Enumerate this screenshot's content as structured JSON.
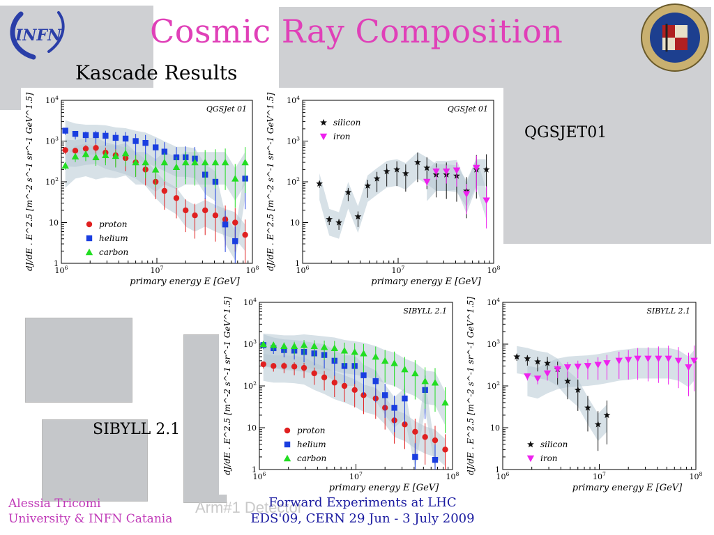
{
  "slide": {
    "title": "Cosmic Ray Composition",
    "subtitle": "Kascade Results",
    "label_qgsjet": "QGSJET01",
    "label_sibyll": "SIBYLL 2.1",
    "logo_text": "INFN",
    "footer_left_1": "Alessia Tricomi",
    "footer_left_2": "University & INFN Catania",
    "footer_center_1": "Forward Experiments at LHC",
    "footer_center_2": "EDS'09, CERN 29 Jun - 3 July 2009",
    "background_text": "Arm#1 Detector"
  },
  "colors": {
    "title": "#e040b8",
    "proton": "#e02020",
    "helium": "#1a3ee0",
    "carbon": "#22dd22",
    "silicon": "#111111",
    "iron": "#ee22ee",
    "band": "#b7c8d4"
  },
  "axes": {
    "xlabel": "primary energy E  [GeV]",
    "ylabel": "dJ/dE . E^2.5  [m^-2 s^-1 sr^-1 GeV^1.5]"
  },
  "chart_data": [
    {
      "type": "scatter",
      "title": "QGSJet 01",
      "xlim": [
        1000000,
        100000000
      ],
      "ylim": [
        1,
        10000
      ],
      "xscale": "log",
      "yscale": "log",
      "xticks": [
        "10^6",
        "10^7",
        "10^8"
      ],
      "yticks": [
        "1",
        "10",
        "10^2",
        "10^3",
        "10^4"
      ],
      "legend_position": "bottom-left",
      "series": [
        {
          "name": "proton",
          "marker": "circle",
          "color": "#e02020",
          "x": [
            1100000.0,
            1400000.0,
            1800000.0,
            2300000.0,
            2900000.0,
            3700000.0,
            4700000.0,
            6000000.0,
            7600000.0,
            9700000.0,
            12000000.0,
            16000000.0,
            20000000.0,
            25000000.0,
            32000000.0,
            41000000.0,
            52000000.0,
            66000000.0,
            84000000.0
          ],
          "y": [
            600,
            580,
            650,
            680,
            520,
            450,
            380,
            300,
            200,
            100,
            60,
            40,
            20,
            15,
            20,
            15,
            12,
            10,
            5
          ]
        },
        {
          "name": "helium",
          "marker": "square",
          "color": "#1a3ee0",
          "x": [
            1100000.0,
            1400000.0,
            1800000.0,
            2300000.0,
            2900000.0,
            3700000.0,
            4700000.0,
            6000000.0,
            7600000.0,
            9700000.0,
            12000000.0,
            16000000.0,
            20000000.0,
            25000000.0,
            32000000.0,
            41000000.0,
            52000000.0,
            66000000.0,
            84000000.0
          ],
          "y": [
            1800,
            1500,
            1400,
            1400,
            1350,
            1200,
            1150,
            1000,
            900,
            700,
            550,
            400,
            400,
            370,
            150,
            100,
            9,
            3.5,
            120
          ]
        },
        {
          "name": "carbon",
          "marker": "triangle",
          "color": "#22dd22",
          "x": [
            1100000.0,
            1400000.0,
            1800000.0,
            2300000.0,
            2900000.0,
            3700000.0,
            4700000.0,
            6000000.0,
            7600000.0,
            9700000.0,
            12000000.0,
            16000000.0,
            20000000.0,
            25000000.0,
            32000000.0,
            41000000.0,
            52000000.0,
            66000000.0,
            84000000.0
          ],
          "y": [
            250,
            420,
            480,
            400,
            450,
            430,
            500,
            300,
            300,
            200,
            300,
            230,
            300,
            300,
            300,
            300,
            300,
            120,
            300
          ]
        }
      ]
    },
    {
      "type": "scatter",
      "title": "QGSJet 01",
      "xlim": [
        1000000,
        100000000
      ],
      "ylim": [
        1,
        10000
      ],
      "xscale": "log",
      "yscale": "log",
      "xticks": [
        "10^6",
        "10^7",
        "10^8"
      ],
      "yticks": [
        "1",
        "10",
        "10^2",
        "10^3",
        "10^4"
      ],
      "legend_position": "top-left",
      "series": [
        {
          "name": "silicon",
          "marker": "star",
          "color": "#111111",
          "x": [
            1500000.0,
            1900000.0,
            2400000.0,
            3000000.0,
            3800000.0,
            4800000.0,
            6000000.0,
            7600000.0,
            9700000.0,
            12000000.0,
            16000000.0,
            20000000.0,
            25000000.0,
            32000000.0,
            41000000.0,
            52000000.0,
            66000000.0,
            84000000.0
          ],
          "y": [
            90,
            12,
            10,
            55,
            14,
            80,
            120,
            180,
            200,
            160,
            300,
            220,
            150,
            150,
            140,
            60,
            200,
            200
          ]
        },
        {
          "name": "iron",
          "marker": "triangle-down",
          "color": "#ee22ee",
          "x": [
            20000000.0,
            25000000.0,
            32000000.0,
            41000000.0,
            52000000.0,
            66000000.0,
            84000000.0
          ],
          "y": [
            100,
            180,
            180,
            190,
            50,
            220,
            35
          ]
        }
      ]
    },
    {
      "type": "scatter",
      "title": "SIBYLL 2.1",
      "xlim": [
        1000000,
        100000000
      ],
      "ylim": [
        1,
        10000
      ],
      "xscale": "log",
      "yscale": "log",
      "xticks": [
        "10^6",
        "10^7",
        "10^8"
      ],
      "yticks": [
        "1",
        "10",
        "10^2",
        "10^3",
        "10^4"
      ],
      "legend_position": "bottom-left",
      "series": [
        {
          "name": "proton",
          "marker": "circle",
          "color": "#e02020",
          "x": [
            1100000.0,
            1400000.0,
            1800000.0,
            2300000.0,
            2900000.0,
            3700000.0,
            4700000.0,
            6000000.0,
            7600000.0,
            9700000.0,
            12000000.0,
            16000000.0,
            20000000.0,
            25000000.0,
            32000000.0,
            41000000.0,
            52000000.0,
            66000000.0,
            84000000.0
          ],
          "y": [
            330,
            300,
            300,
            290,
            270,
            200,
            160,
            120,
            100,
            80,
            60,
            50,
            30,
            15,
            12,
            8,
            6,
            5,
            3
          ]
        },
        {
          "name": "helium",
          "marker": "square",
          "color": "#1a3ee0",
          "x": [
            1100000.0,
            1400000.0,
            1800000.0,
            2300000.0,
            2900000.0,
            3700000.0,
            4700000.0,
            6000000.0,
            7600000.0,
            9700000.0,
            12000000.0,
            16000000.0,
            20000000.0,
            25000000.0,
            32000000.0,
            41000000.0,
            52000000.0,
            66000000.0
          ],
          "y": [
            950,
            800,
            720,
            700,
            650,
            600,
            550,
            400,
            300,
            300,
            180,
            130,
            60,
            30,
            50,
            2,
            80,
            1.7
          ]
        },
        {
          "name": "carbon",
          "marker": "triangle",
          "color": "#22dd22",
          "x": [
            1100000.0,
            1400000.0,
            1800000.0,
            2300000.0,
            2900000.0,
            3700000.0,
            4700000.0,
            6000000.0,
            7600000.0,
            9700000.0,
            12000000.0,
            16000000.0,
            20000000.0,
            25000000.0,
            32000000.0,
            41000000.0,
            52000000.0,
            66000000.0,
            84000000.0
          ],
          "y": [
            1000,
            950,
            900,
            900,
            950,
            900,
            850,
            800,
            700,
            650,
            600,
            500,
            400,
            350,
            250,
            200,
            130,
            120,
            40
          ]
        }
      ]
    },
    {
      "type": "scatter",
      "title": "SIBYLL 2.1",
      "xlim": [
        1000000,
        100000000
      ],
      "ylim": [
        1,
        10000
      ],
      "xscale": "log",
      "yscale": "log",
      "xticks": [
        "10^6",
        "10^7",
        "10^8"
      ],
      "yticks": [
        "1",
        "10",
        "10^2",
        "10^3",
        "10^4"
      ],
      "legend_position": "bottom-left",
      "series": [
        {
          "name": "silicon",
          "marker": "star",
          "color": "#111111",
          "x": [
            1400000.0,
            1800000.0,
            2300000.0,
            2900000.0,
            3700000.0,
            4700000.0,
            6000000.0,
            7600000.0,
            9700000.0,
            12000000.0
          ],
          "y": [
            500,
            450,
            380,
            350,
            250,
            130,
            80,
            30,
            12,
            20
          ]
        },
        {
          "name": "iron",
          "marker": "triangle-down",
          "color": "#ee22ee",
          "x": [
            1800000.0,
            2300000.0,
            2900000.0,
            3700000.0,
            4700000.0,
            6000000.0,
            7600000.0,
            9700000.0,
            12000000.0,
            16000000.0,
            20000000.0,
            25000000.0,
            32000000.0,
            41000000.0,
            52000000.0,
            66000000.0,
            84000000.0,
            96000000.0
          ],
          "y": [
            170,
            150,
            200,
            250,
            280,
            290,
            300,
            320,
            350,
            400,
            420,
            450,
            450,
            450,
            450,
            400,
            280,
            400
          ]
        }
      ]
    }
  ]
}
